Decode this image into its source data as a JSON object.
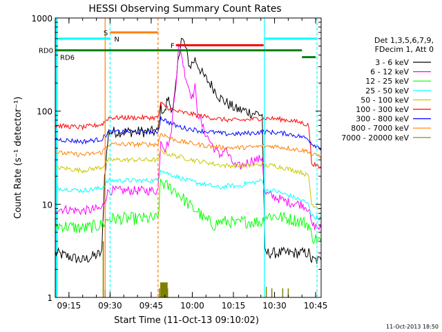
{
  "chart_data": {
    "type": "line",
    "title": "HESSI Observing Summary Count Rates",
    "xlabel": "Start Time (11-Oct-13 09:10:02)",
    "ylabel": "Count Rate (s⁻¹ detector⁻¹)",
    "y_scale": "log",
    "ylim": [
      1,
      1000
    ],
    "xlim_minutes": [
      0,
      97
    ],
    "x_ticks": [
      {
        "t": 5,
        "label": "09:15"
      },
      {
        "t": 20,
        "label": "09:30"
      },
      {
        "t": 35,
        "label": "09:45"
      },
      {
        "t": 50,
        "label": "10:00"
      },
      {
        "t": 65,
        "label": "10:15"
      },
      {
        "t": 80,
        "label": "10:30"
      },
      {
        "t": 95,
        "label": "10:45"
      }
    ],
    "y_ticks": [
      {
        "v": 1,
        "label": "1"
      },
      {
        "v": 10,
        "label": "10"
      },
      {
        "v": 100,
        "label": "100"
      },
      {
        "v": 1000,
        "label": "1000"
      }
    ],
    "legend_header": [
      "Det 1,3,5,6,7,9,",
      "FDecim 1, Att 0"
    ],
    "legend_placement": "right",
    "footer_timestamp": "11-Oct-2013 18:50",
    "series": [
      {
        "name": "3 - 6 keV",
        "color": "#000000",
        "points": [
          [
            0,
            3
          ],
          [
            10,
            2.5
          ],
          [
            17,
            3
          ],
          [
            18,
            20
          ],
          [
            19.5,
            60
          ],
          [
            37.5,
            60
          ],
          [
            38.5,
            110
          ],
          [
            40,
            95
          ],
          [
            41,
            140
          ],
          [
            42,
            115
          ],
          [
            43,
            105
          ],
          [
            44,
            180
          ],
          [
            45,
            400
          ],
          [
            46,
            600
          ],
          [
            47,
            540
          ],
          [
            48,
            420
          ],
          [
            49,
            300
          ],
          [
            51,
            360
          ],
          [
            54,
            240
          ],
          [
            57,
            190
          ],
          [
            60,
            140
          ],
          [
            63,
            120
          ],
          [
            66,
            105
          ],
          [
            70,
            100
          ],
          [
            72,
            95
          ],
          [
            74,
            95
          ],
          [
            75.5,
            90
          ],
          [
            76.5,
            3
          ],
          [
            86,
            3
          ],
          [
            92.5,
            3
          ],
          [
            93.5,
            2.5
          ],
          [
            97,
            2.5
          ]
        ]
      },
      {
        "name": "6 - 12 keV",
        "color": "#ff00ff",
        "points": [
          [
            0,
            9
          ],
          [
            10,
            8.5
          ],
          [
            17,
            9
          ],
          [
            18,
            11
          ],
          [
            19.5,
            14
          ],
          [
            37.5,
            14
          ],
          [
            38.5,
            50
          ],
          [
            40,
            40
          ],
          [
            42,
            50
          ],
          [
            44,
            200
          ],
          [
            45,
            500
          ],
          [
            46,
            420
          ],
          [
            47,
            280
          ],
          [
            48,
            210
          ],
          [
            49,
            170
          ],
          [
            50,
            140
          ],
          [
            51,
            180
          ],
          [
            52,
            95
          ],
          [
            54,
            65
          ],
          [
            56,
            50
          ],
          [
            58,
            40
          ],
          [
            60,
            33
          ],
          [
            62,
            40
          ],
          [
            64,
            30
          ],
          [
            66,
            25
          ],
          [
            68,
            26
          ],
          [
            70,
            28
          ],
          [
            72,
            30
          ],
          [
            74,
            30
          ],
          [
            75.5,
            32
          ],
          [
            76.5,
            13
          ],
          [
            80,
            12
          ],
          [
            85,
            10.5
          ],
          [
            90,
            10
          ],
          [
            92.5,
            9
          ],
          [
            93.5,
            6
          ],
          [
            97,
            5.5
          ]
        ]
      },
      {
        "name": "12 - 25 keV",
        "color": "#00ff00",
        "points": [
          [
            0,
            6
          ],
          [
            10,
            5.5
          ],
          [
            17,
            6
          ],
          [
            19.5,
            7
          ],
          [
            37.5,
            7
          ],
          [
            38.5,
            18
          ],
          [
            40,
            16
          ],
          [
            42,
            15
          ],
          [
            44,
            14
          ],
          [
            46,
            12
          ],
          [
            48,
            10.5
          ],
          [
            50,
            9
          ],
          [
            52,
            8.5
          ],
          [
            54,
            7
          ],
          [
            56,
            6.5
          ],
          [
            58,
            6
          ],
          [
            60,
            6.5
          ],
          [
            62,
            6.5
          ],
          [
            64,
            6.5
          ],
          [
            66,
            6
          ],
          [
            68,
            6.5
          ],
          [
            70,
            6.5
          ],
          [
            72,
            6.5
          ],
          [
            75.5,
            6.5
          ],
          [
            76.5,
            7.5
          ],
          [
            80,
            7.5
          ],
          [
            85,
            7
          ],
          [
            90,
            6.5
          ],
          [
            92.5,
            6
          ],
          [
            93.5,
            4.5
          ],
          [
            97,
            4
          ]
        ]
      },
      {
        "name": "25 - 50 keV",
        "color": "#00ffff",
        "points": [
          [
            0,
            15
          ],
          [
            10,
            14
          ],
          [
            17,
            15
          ],
          [
            19.5,
            18
          ],
          [
            37.5,
            18
          ],
          [
            38.5,
            24
          ],
          [
            40,
            22
          ],
          [
            42,
            21
          ],
          [
            44,
            20
          ],
          [
            46,
            19
          ],
          [
            48,
            18
          ],
          [
            50,
            17.5
          ],
          [
            52,
            17
          ],
          [
            54,
            16.5
          ],
          [
            56,
            16
          ],
          [
            58,
            15.5
          ],
          [
            60,
            15
          ],
          [
            62,
            15.5
          ],
          [
            64,
            16
          ],
          [
            66,
            15.5
          ],
          [
            68,
            16
          ],
          [
            70,
            17
          ],
          [
            72,
            17
          ],
          [
            75.5,
            18
          ],
          [
            76.5,
            14
          ],
          [
            80,
            14
          ],
          [
            85,
            12.5
          ],
          [
            90,
            11
          ],
          [
            92.5,
            10
          ],
          [
            93.5,
            7.5
          ],
          [
            97,
            7
          ]
        ]
      },
      {
        "name": "50 - 100 keV",
        "color": "#c8c800",
        "points": [
          [
            0,
            25
          ],
          [
            10,
            23
          ],
          [
            17,
            25
          ],
          [
            19.5,
            30
          ],
          [
            37.5,
            30
          ],
          [
            38.5,
            38
          ],
          [
            40,
            36
          ],
          [
            42,
            34
          ],
          [
            44,
            33
          ],
          [
            46,
            32
          ],
          [
            48,
            31
          ],
          [
            50,
            30
          ],
          [
            52,
            29
          ],
          [
            54,
            28.5
          ],
          [
            56,
            28
          ],
          [
            58,
            27
          ],
          [
            60,
            26.5
          ],
          [
            62,
            26
          ],
          [
            64,
            26
          ],
          [
            66,
            26
          ],
          [
            68,
            25.5
          ],
          [
            70,
            26
          ],
          [
            72,
            26
          ],
          [
            75.5,
            27
          ],
          [
            76.5,
            26
          ],
          [
            80,
            26
          ],
          [
            85,
            24
          ],
          [
            90,
            22
          ],
          [
            92.5,
            20
          ],
          [
            93.5,
            10
          ],
          [
            97,
            9
          ]
        ]
      },
      {
        "name": "100 - 300 keV",
        "color": "#ff0000",
        "points": [
          [
            0,
            70
          ],
          [
            10,
            67
          ],
          [
            17,
            72
          ],
          [
            19.5,
            85
          ],
          [
            37.5,
            85
          ],
          [
            38.5,
            120
          ],
          [
            40,
            115
          ],
          [
            42,
            105
          ],
          [
            44,
            100
          ],
          [
            46,
            97
          ],
          [
            48,
            95
          ],
          [
            50,
            93
          ],
          [
            52,
            90
          ],
          [
            54,
            88
          ],
          [
            56,
            86
          ],
          [
            58,
            84
          ],
          [
            60,
            82
          ],
          [
            62,
            81
          ],
          [
            64,
            80
          ],
          [
            66,
            80
          ],
          [
            68,
            80
          ],
          [
            70,
            81
          ],
          [
            72,
            82
          ],
          [
            75.5,
            84
          ],
          [
            76.5,
            84
          ],
          [
            80,
            83
          ],
          [
            85,
            80
          ],
          [
            90,
            75
          ],
          [
            92.5,
            70
          ],
          [
            93.5,
            28
          ],
          [
            97,
            24
          ]
        ]
      },
      {
        "name": "300 - 800 keV",
        "color": "#0000ff",
        "points": [
          [
            0,
            50
          ],
          [
            10,
            47
          ],
          [
            17,
            50
          ],
          [
            19.5,
            60
          ],
          [
            37.5,
            60
          ],
          [
            38.5,
            85
          ],
          [
            40,
            80
          ],
          [
            42,
            74
          ],
          [
            44,
            70
          ],
          [
            46,
            67
          ],
          [
            48,
            65
          ],
          [
            50,
            64
          ],
          [
            52,
            62
          ],
          [
            54,
            61
          ],
          [
            56,
            60
          ],
          [
            58,
            59
          ],
          [
            60,
            58
          ],
          [
            62,
            57
          ],
          [
            64,
            57
          ],
          [
            66,
            57
          ],
          [
            68,
            57
          ],
          [
            70,
            58
          ],
          [
            72,
            58
          ],
          [
            75.5,
            60
          ],
          [
            76.5,
            60
          ],
          [
            80,
            59
          ],
          [
            85,
            57
          ],
          [
            90,
            53
          ],
          [
            92.5,
            50
          ],
          [
            93.5,
            45
          ],
          [
            97,
            40
          ]
        ]
      },
      {
        "name": "800 - 7000 keV",
        "color": "#ff8000",
        "points": [
          [
            0,
            36
          ],
          [
            10,
            34
          ],
          [
            17,
            36
          ],
          [
            19.5,
            44
          ],
          [
            37.5,
            44
          ],
          [
            38.5,
            58
          ],
          [
            40,
            55
          ],
          [
            42,
            51
          ],
          [
            44,
            49
          ],
          [
            46,
            47
          ],
          [
            48,
            46
          ],
          [
            50,
            45
          ],
          [
            52,
            44
          ],
          [
            54,
            43
          ],
          [
            56,
            42
          ],
          [
            58,
            41.5
          ],
          [
            60,
            41
          ],
          [
            62,
            40.5
          ],
          [
            64,
            40.5
          ],
          [
            66,
            40.5
          ],
          [
            68,
            40.5
          ],
          [
            70,
            41
          ],
          [
            72,
            41
          ],
          [
            75.5,
            42
          ],
          [
            76.5,
            42
          ],
          [
            80,
            42
          ],
          [
            85,
            40
          ],
          [
            90,
            38
          ],
          [
            92.5,
            37
          ],
          [
            93.5,
            34
          ],
          [
            97,
            33
          ]
        ]
      },
      {
        "name": "7000 - 20000 keV",
        "color": "#808000",
        "points": [
          [
            17.5,
            4
          ],
          [
            18.2,
            1.2
          ],
          [
            38,
            1.25
          ],
          [
            41,
            1.25
          ],
          [
            77,
            1.3
          ],
          [
            79,
            1.25
          ],
          [
            83,
            1.25
          ],
          [
            85,
            1.25
          ]
        ]
      }
    ],
    "annotations": [
      {
        "label": "S",
        "color": "#ff8000",
        "kind": "bar",
        "t_start": 20,
        "t_end": 37.5,
        "y": 700
      },
      {
        "label": "N",
        "color": "#00ffff",
        "kind": "bar",
        "t_start": 0,
        "t_end": 20,
        "y": 600
      },
      {
        "label": "",
        "color": "#00ffff",
        "kind": "bar",
        "t_start": 76.5,
        "t_end": 95.5,
        "y": 600
      },
      {
        "label": "F",
        "color": "#ff0000",
        "kind": "bar",
        "t_start": 44,
        "t_end": 76,
        "y": 510
      },
      {
        "label": "RD0",
        "color": "#008000",
        "kind": "bar",
        "t_start": 0,
        "t_end": 90,
        "y": 450
      },
      {
        "label": "RD6",
        "color": "#008000",
        "kind": "bar",
        "t_start": 90,
        "t_end": 95,
        "y": 380
      }
    ],
    "vertical_markers": [
      {
        "t": 18.2,
        "color": "#ff8000",
        "style": "solid"
      },
      {
        "t": 20,
        "color": "#00ffff",
        "style": "dashed"
      },
      {
        "t": 37.5,
        "color": "#ff8000",
        "style": "dashed"
      },
      {
        "t": 76.3,
        "color": "#00ffff",
        "style": "solid"
      },
      {
        "t": 95.5,
        "color": "#00ffff",
        "style": "dashed"
      }
    ],
    "shaded_regions": [
      {
        "t_start": 0,
        "t_end": 0.8,
        "color": "#00ffff"
      },
      {
        "t_start": 38.3,
        "t_end": 41,
        "color": "#808000",
        "y_max": 1.45
      }
    ]
  }
}
